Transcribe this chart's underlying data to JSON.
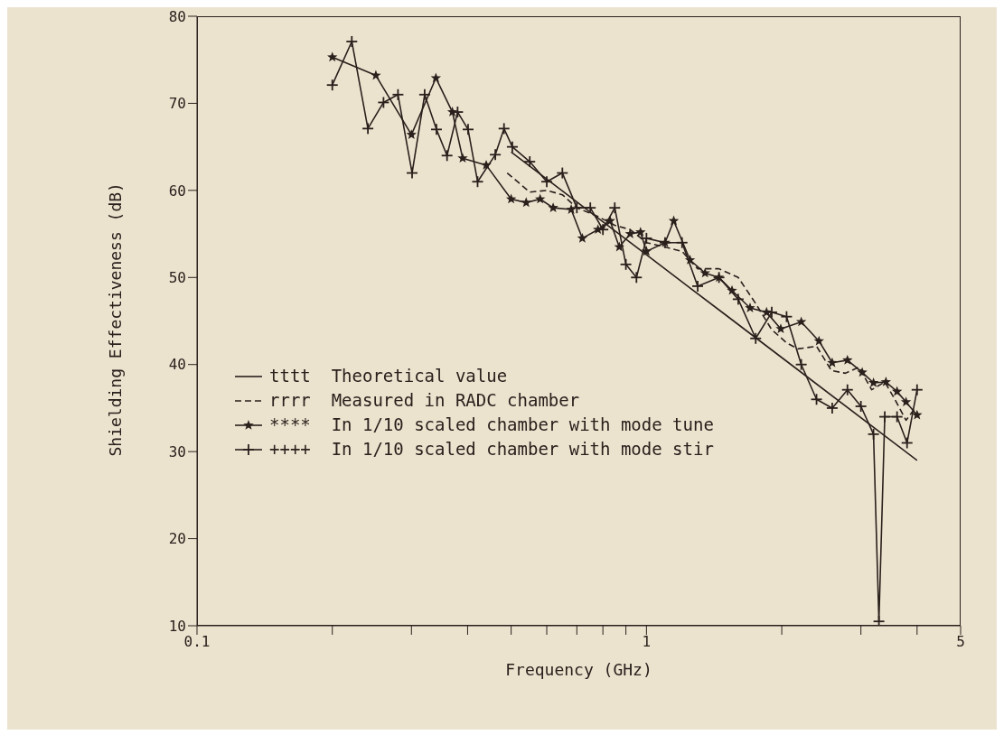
{
  "chart_data": {
    "type": "line",
    "xlabel": "Frequency (GHz)",
    "ylabel": "Shielding Effectiveness (dB)",
    "log": "x",
    "xlim": [
      0.1,
      5
    ],
    "ylim": [
      10,
      80
    ],
    "xticks": [
      0.1,
      {
        "value": 0.2,
        "label": null
      },
      {
        "value": 0.3,
        "label": null
      },
      {
        "value": 0.4,
        "label": null
      },
      {
        "value": 0.5,
        "label": null
      },
      {
        "value": 0.6,
        "label": null
      },
      {
        "value": 0.7,
        "label": null
      },
      {
        "value": 0.8,
        "label": null
      },
      {
        "value": 0.9,
        "label": null
      },
      1,
      {
        "value": 2,
        "label": null
      },
      {
        "value": 3,
        "label": null
      },
      {
        "value": 4,
        "label": null
      },
      5
    ],
    "yticks": [
      10,
      20,
      30,
      40,
      50,
      60,
      70,
      80
    ],
    "legend": "left",
    "series": [
      {
        "name": "tttt  Theoretical value",
        "color": "#2a201c",
        "marker": "none",
        "line_style": "solid",
        "x": [
          0.5,
          1,
          1.5,
          2,
          4
        ],
        "values": [
          64.4,
          52.6,
          45.7,
          40.8,
          29.0
        ]
      },
      {
        "name": "rrrr  Measured in RADC chamber",
        "color": "#2a201c",
        "marker": "none",
        "line_style": "dashed",
        "x": [
          0.49,
          0.55,
          0.6,
          0.65,
          0.7,
          0.78,
          0.85,
          0.92,
          1.0,
          1.1,
          1.2,
          1.3,
          1.45,
          1.6,
          1.75,
          1.9,
          2.05,
          2.17,
          2.39,
          2.58,
          2.77,
          2.97,
          3.17,
          3.39,
          3.57,
          3.78,
          3.96
        ],
        "values": [
          62,
          59.8,
          60,
          59.5,
          58,
          57,
          56,
          55.5,
          54,
          53.5,
          53,
          51,
          51,
          50,
          47,
          44,
          42.5,
          41.8,
          42.1,
          39.3,
          39.0,
          39.7,
          37.1,
          38.0,
          36.0,
          33.6,
          35.0
        ]
      },
      {
        "name": "****  In 1/10 scaled chamber with mode tune",
        "color": "#2a201c",
        "marker": "star",
        "line_style": "solid",
        "x": [
          0.2,
          0.25,
          0.3,
          0.34,
          0.37,
          0.39,
          0.44,
          0.5,
          0.54,
          0.58,
          0.62,
          0.68,
          0.72,
          0.78,
          0.83,
          0.87,
          0.92,
          0.97,
          1.0,
          1.1,
          1.15,
          1.25,
          1.35,
          1.45,
          1.55,
          1.7,
          1.85,
          1.99,
          2.21,
          2.42,
          2.59,
          2.8,
          3.02,
          3.2,
          3.41,
          3.61,
          3.78,
          4.0
        ],
        "values": [
          75.3,
          73.2,
          66.4,
          72.9,
          69.0,
          63.7,
          62.9,
          59.0,
          58.6,
          59,
          58,
          57.8,
          54.5,
          55.5,
          56.5,
          53.5,
          55,
          55.2,
          53,
          54,
          56.5,
          52,
          50.5,
          50,
          48.5,
          46.5,
          46,
          44.1,
          44.9,
          42.7,
          40.2,
          40.5,
          39.1,
          37.9,
          38.0,
          36.9,
          35.7,
          34.2
        ]
      },
      {
        "name": "++++  In 1/10 scaled chamber with mode stir",
        "color": "#2a201c",
        "marker": "cross",
        "line_style": "solid",
        "x": [
          0.2,
          0.221,
          0.24,
          0.26,
          0.28,
          0.301,
          0.321,
          0.341,
          0.36,
          0.38,
          0.401,
          0.421,
          0.461,
          0.482,
          0.503,
          0.55,
          0.6,
          0.65,
          0.7,
          0.75,
          0.8,
          0.85,
          0.9,
          0.95,
          1.0,
          1.1,
          1.2,
          1.3,
          1.45,
          1.6,
          1.75,
          1.9,
          2.05,
          2.21,
          2.39,
          2.59,
          2.8,
          3.0,
          3.2,
          3.29,
          3.39,
          3.61,
          3.8,
          4.0
        ],
        "values": [
          72.1,
          77.1,
          67.1,
          70.1,
          71.0,
          62.0,
          71.0,
          67.0,
          64.0,
          69.0,
          67.0,
          61.0,
          64.1,
          67.1,
          65.0,
          63.3,
          61,
          62,
          58,
          58,
          55.5,
          58,
          51.5,
          50,
          54.5,
          54,
          54,
          49,
          50,
          47.5,
          43,
          46,
          45.5,
          40.0,
          36.0,
          35.0,
          37.1,
          35.2,
          32.0,
          10.5,
          34.0,
          34.0,
          31.0,
          37.1
        ]
      }
    ]
  }
}
